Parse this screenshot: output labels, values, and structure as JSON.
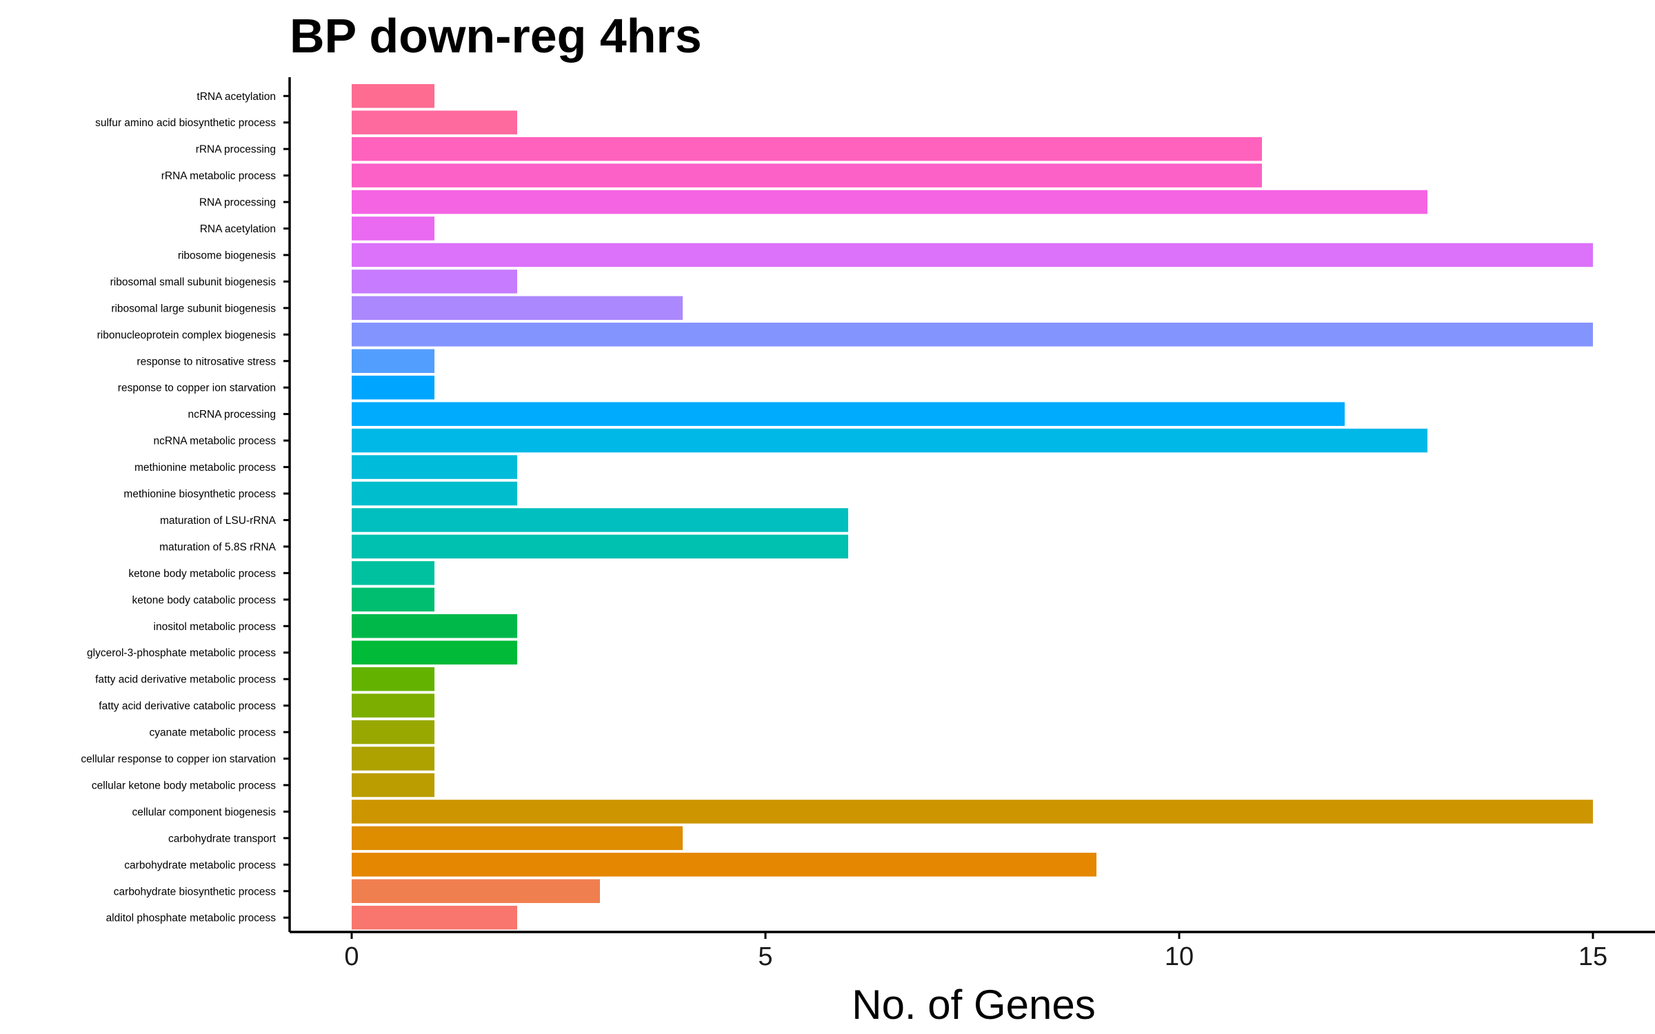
{
  "chart_data": {
    "type": "bar",
    "orientation": "horizontal",
    "title": "BP down-reg 4hrs",
    "xlabel": "No. of Genes",
    "ylabel": "",
    "xlim": [
      -0.75,
      15.75
    ],
    "xticks": [
      0,
      5,
      10,
      15
    ],
    "grid": false,
    "legend": "none",
    "categories": [
      "tRNA acetylation",
      "sulfur amino acid biosynthetic process",
      "rRNA processing",
      "rRNA metabolic process",
      "RNA processing",
      "RNA acetylation",
      "ribosome biogenesis",
      "ribosomal small subunit biogenesis",
      "ribosomal large subunit biogenesis",
      "ribonucleoprotein complex biogenesis",
      "response to nitrosative stress",
      "response to copper ion starvation",
      "ncRNA processing",
      "ncRNA metabolic process",
      "methionine metabolic process",
      "methionine biosynthetic process",
      "maturation of LSU-rRNA",
      "maturation of 5.8S rRNA",
      "ketone body metabolic process",
      "ketone body catabolic process",
      "inositol metabolic process",
      "glycerol-3-phosphate metabolic process",
      "fatty acid derivative metabolic process",
      "fatty acid derivative catabolic process",
      "cyanate metabolic process",
      "cellular response to copper ion starvation",
      "cellular ketone body metabolic process",
      "cellular component biogenesis",
      "carbohydrate transport",
      "carbohydrate metabolic process",
      "carbohydrate biosynthetic process",
      "alditol phosphate metabolic process"
    ],
    "values": [
      1,
      2,
      11,
      11,
      13,
      1,
      15,
      2,
      4,
      15,
      1,
      1,
      12,
      13,
      2,
      2,
      6,
      6,
      1,
      1,
      2,
      2,
      1,
      1,
      1,
      1,
      1,
      15,
      4,
      9,
      3,
      2
    ],
    "colors": [
      "#FF6C91",
      "#FF6A9E",
      "#FF62BC",
      "#FB61C7",
      "#F564E3",
      "#EA6AF1",
      "#DC71FA",
      "#C77CFF",
      "#AC88FF",
      "#8494FF",
      "#529EFF",
      "#00A5FF",
      "#00ABFD",
      "#00B8E7",
      "#00BBDA",
      "#00BDCD",
      "#00BFBE",
      "#00C0AF",
      "#00C19F",
      "#00BE70",
      "#00B84A",
      "#00BA38",
      "#64B200",
      "#7CAE00",
      "#99A800",
      "#ADA200",
      "#BB9D00",
      "#CD9600",
      "#DE8C00",
      "#E58700",
      "#F07F4F",
      "#F8766D"
    ]
  }
}
